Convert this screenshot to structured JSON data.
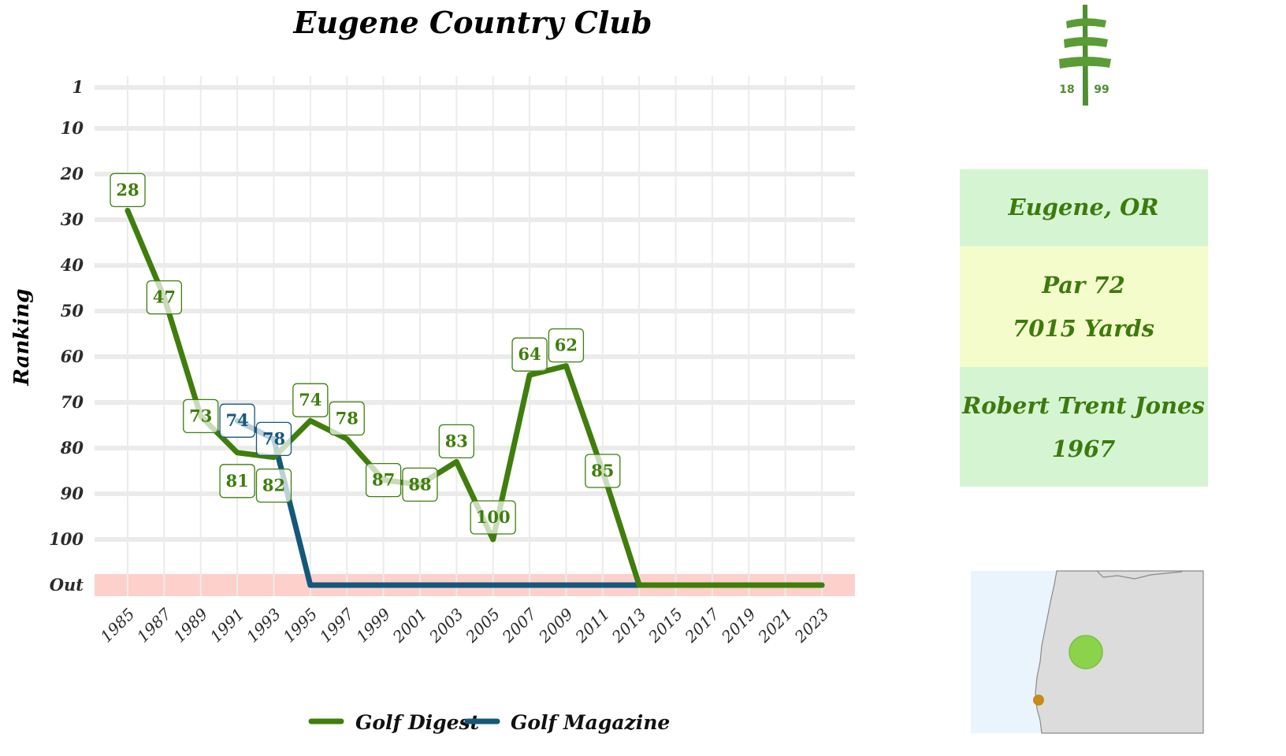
{
  "chart_data": {
    "type": "line",
    "title": "Eugene Country Club",
    "xlabel": "",
    "ylabel": "Ranking",
    "y_tick_labels": [
      "1",
      "10",
      "20",
      "30",
      "40",
      "50",
      "60",
      "70",
      "80",
      "90",
      "100",
      "Out"
    ],
    "y_tick_values": [
      1,
      10,
      20,
      30,
      40,
      50,
      60,
      70,
      80,
      90,
      100,
      110
    ],
    "ylim": [
      1,
      110
    ],
    "y_inverted": true,
    "x_ticks": [
      1985,
      1987,
      1989,
      1991,
      1993,
      1995,
      1997,
      1999,
      2001,
      2003,
      2005,
      2007,
      2009,
      2011,
      2013,
      2015,
      2017,
      2019,
      2021,
      2023
    ],
    "xlim": [
      1985,
      2023
    ],
    "out_band_value": 110,
    "grid": true,
    "legend_position": "bottom",
    "series": [
      {
        "name": "Golf Digest",
        "color": "#3f7e0c",
        "points": [
          {
            "x": 1985,
            "y": 28,
            "label": "28"
          },
          {
            "x": 1987,
            "y": 47,
            "label": "47"
          },
          {
            "x": 1989,
            "y": 73,
            "label": "73"
          },
          {
            "x": 1991,
            "y": 81,
            "label": "81"
          },
          {
            "x": 1993,
            "y": 82,
            "label": "82"
          },
          {
            "x": 1995,
            "y": 74,
            "label": "74"
          },
          {
            "x": 1997,
            "y": 78,
            "label": "78"
          },
          {
            "x": 1999,
            "y": 87,
            "label": "87"
          },
          {
            "x": 2001,
            "y": 88,
            "label": "88"
          },
          {
            "x": 2003,
            "y": 83,
            "label": "83"
          },
          {
            "x": 2005,
            "y": 100,
            "label": "100"
          },
          {
            "x": 2007,
            "y": 64,
            "label": "64"
          },
          {
            "x": 2009,
            "y": 62,
            "label": "62"
          },
          {
            "x": 2011,
            "y": 85,
            "label": "85"
          },
          {
            "x": 2013,
            "y": 110,
            "label": ""
          },
          {
            "x": 2015,
            "y": 110,
            "label": ""
          },
          {
            "x": 2017,
            "y": 110,
            "label": ""
          },
          {
            "x": 2019,
            "y": 110,
            "label": ""
          },
          {
            "x": 2021,
            "y": 110,
            "label": ""
          },
          {
            "x": 2023,
            "y": 110,
            "label": ""
          }
        ]
      },
      {
        "name": "Golf Magazine",
        "color": "#14587a",
        "points": [
          {
            "x": 1991,
            "y": 74,
            "label": "74"
          },
          {
            "x": 1993,
            "y": 78,
            "label": "78"
          },
          {
            "x": 1995,
            "y": 110,
            "label": ""
          },
          {
            "x": 1997,
            "y": 110,
            "label": ""
          },
          {
            "x": 1999,
            "y": 110,
            "label": ""
          },
          {
            "x": 2001,
            "y": 110,
            "label": ""
          },
          {
            "x": 2003,
            "y": 110,
            "label": ""
          },
          {
            "x": 2005,
            "y": 110,
            "label": ""
          },
          {
            "x": 2007,
            "y": 110,
            "label": ""
          },
          {
            "x": 2009,
            "y": 110,
            "label": ""
          },
          {
            "x": 2011,
            "y": 110,
            "label": ""
          },
          {
            "x": 2013,
            "y": 110,
            "label": ""
          },
          {
            "x": 2015,
            "y": 110,
            "label": ""
          },
          {
            "x": 2017,
            "y": 110,
            "label": ""
          },
          {
            "x": 2019,
            "y": 110,
            "label": ""
          },
          {
            "x": 2021,
            "y": 110,
            "label": ""
          },
          {
            "x": 2023,
            "y": 110,
            "label": ""
          }
        ]
      }
    ]
  },
  "info": {
    "location": "Eugene, OR",
    "par": "Par 72",
    "yards": "7015 Yards",
    "architect": "Robert Trent Jones",
    "year_built": "1967"
  },
  "logo": {
    "left_text": "18",
    "right_text": "99",
    "icon": "pine-tree-icon"
  },
  "map": {
    "icon": "oregon-map",
    "water_color": "#eaf4fc",
    "land_color": "#dcdcdc",
    "course_marker_color": "#8cd34c",
    "secondary_marker_color": "#c88a1c"
  },
  "colors": {
    "out_band": "#fdd0cc",
    "grid": "#ebebeb",
    "panel_green": "#d5f5d2",
    "panel_yellow": "#f5fccb"
  }
}
